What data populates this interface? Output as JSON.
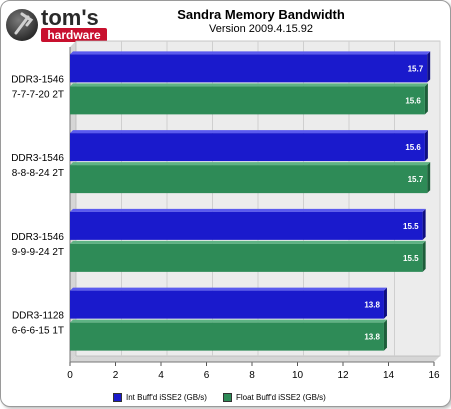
{
  "header": {
    "logo_text_1": "tom's",
    "logo_text_2": "hardware"
  },
  "colors": {
    "int_series": "#1a1acc",
    "float_series": "#2e8b57",
    "plot_background": "#ececec",
    "grid": "#cfcfcf"
  },
  "chart_data": {
    "type": "bar",
    "orientation": "horizontal",
    "title": "Sandra Memory Bandwidth",
    "subtitle": "Version 2009.4.15.92",
    "categories": [
      [
        "DDR3-1546",
        "7-7-7-20 2T"
      ],
      [
        "DDR3-1546",
        "8-8-8-24 2T"
      ],
      [
        "DDR3-1546",
        "9-9-9-24 2T"
      ],
      [
        "DDR3-1128",
        "6-6-6-15 1T"
      ]
    ],
    "series": [
      {
        "name": "Int Buff'd iSSE2 (GB/s)",
        "values": [
          15.7,
          15.6,
          15.5,
          13.8
        ],
        "labels": [
          "15.7",
          "15.6",
          "15.5",
          "13.8"
        ]
      },
      {
        "name": "Float Buff'd iSSE2 (GB/s)",
        "values": [
          15.6,
          15.7,
          15.5,
          13.8
        ],
        "labels": [
          "15.6",
          "15.7",
          "15.5",
          "13.8"
        ]
      }
    ],
    "xlim": [
      0,
      16
    ],
    "xticks": [
      "0",
      "2",
      "4",
      "6",
      "8",
      "10",
      "12",
      "14",
      "16"
    ],
    "xlabel": "",
    "ylabel": "",
    "grid": true,
    "legend": "bottom"
  }
}
